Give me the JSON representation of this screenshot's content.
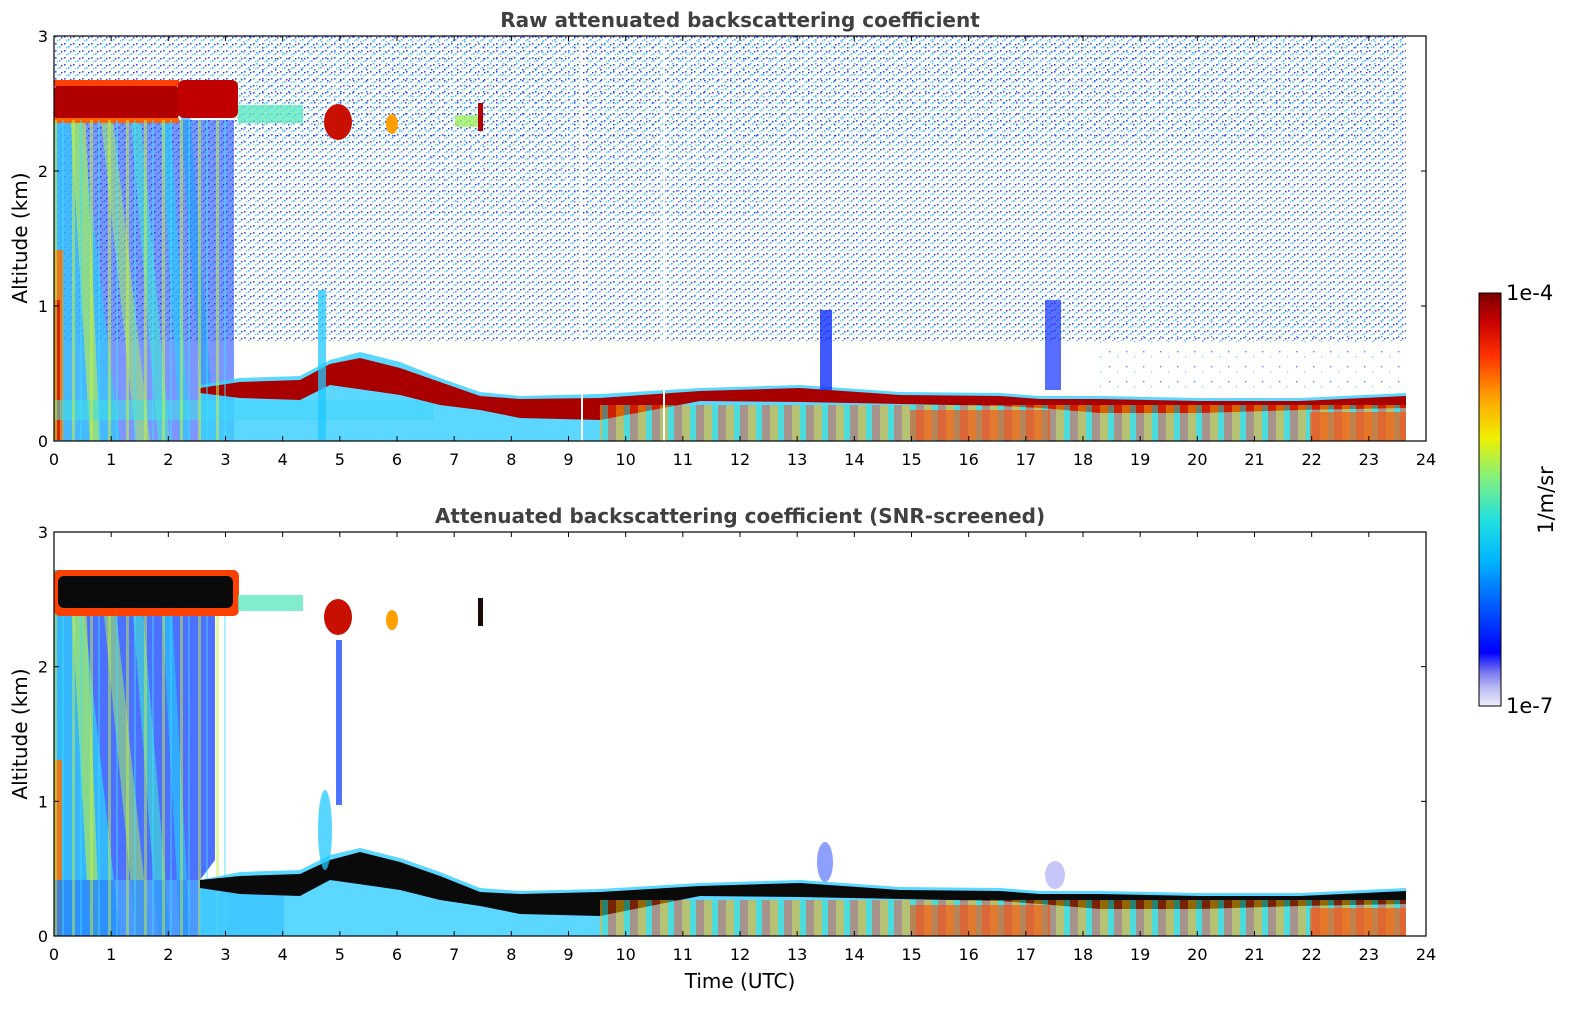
{
  "chart_data": [
    {
      "type": "heatmap",
      "title": "Raw attenuated backscattering coefficient",
      "xlabel": "",
      "ylabel": "Altitude (km)",
      "xlim": [
        0,
        24
      ],
      "ylim": [
        0,
        3
      ],
      "xticks": [
        "0",
        "1",
        "2",
        "3",
        "4",
        "5",
        "6",
        "7",
        "8",
        "9",
        "10",
        "11",
        "12",
        "13",
        "14",
        "15",
        "16",
        "17",
        "18",
        "19",
        "20",
        "21",
        "22",
        "23",
        "24"
      ],
      "yticks": [
        "0",
        "1",
        "2",
        "3"
      ],
      "data_end_time": 23.65,
      "boundary_layer_top_km": [
        {
          "t": 3.0,
          "z": 0.42
        },
        {
          "t": 5.0,
          "z": 0.68
        },
        {
          "t": 6.0,
          "z": 0.55
        },
        {
          "t": 7.0,
          "z": 0.45
        },
        {
          "t": 7.5,
          "z": 0.33
        },
        {
          "t": 8.0,
          "z": 0.32
        },
        {
          "t": 9.0,
          "z": 0.3
        },
        {
          "t": 10.0,
          "z": 0.36
        },
        {
          "t": 11.0,
          "z": 0.36
        },
        {
          "t": 12.0,
          "z": 0.4
        },
        {
          "t": 13.0,
          "z": 0.4
        },
        {
          "t": 14.0,
          "z": 0.38
        },
        {
          "t": 15.0,
          "z": 0.35
        },
        {
          "t": 16.0,
          "z": 0.36
        },
        {
          "t": 17.0,
          "z": 0.36
        },
        {
          "t": 18.0,
          "z": 0.33
        },
        {
          "t": 19.0,
          "z": 0.32
        },
        {
          "t": 20.0,
          "z": 0.3
        },
        {
          "t": 21.0,
          "z": 0.31
        },
        {
          "t": 22.0,
          "z": 0.32
        },
        {
          "t": 23.0,
          "z": 0.35
        },
        {
          "t": 23.65,
          "z": 0.35
        }
      ],
      "cloud_layers_km": [
        {
          "t_start": 0.1,
          "t_end": 3.2,
          "z_base": 2.3,
          "z_top": 2.7
        },
        {
          "t_start": 4.7,
          "t_end": 5.2,
          "z_base": 2.25,
          "z_top": 2.5
        },
        {
          "t_start": 5.8,
          "t_end": 6.1,
          "z_base": 2.25,
          "z_top": 2.45
        },
        {
          "t_start": 7.35,
          "t_end": 7.5,
          "z_base": 2.25,
          "z_top": 2.55
        }
      ]
    },
    {
      "type": "heatmap",
      "title": "Attenuated backscattering coefficient (SNR-screened)",
      "xlabel": "Time (UTC)",
      "ylabel": "Altitude (km)",
      "xlim": [
        0,
        24
      ],
      "ylim": [
        0,
        3
      ],
      "xticks": [
        "0",
        "1",
        "2",
        "3",
        "4",
        "5",
        "6",
        "7",
        "8",
        "9",
        "10",
        "11",
        "12",
        "13",
        "14",
        "15",
        "16",
        "17",
        "18",
        "19",
        "20",
        "21",
        "22",
        "23",
        "24"
      ],
      "yticks": [
        "0",
        "1",
        "2",
        "3"
      ],
      "data_end_time": 23.65
    }
  ],
  "colorbar": {
    "label": "1/m/sr",
    "max_label": "1e-4",
    "min_label": "1e-7",
    "scale": "log",
    "colors": [
      "#e8e8f8",
      "#b8b8f0",
      "#7878f0",
      "#0000ff",
      "#0070ff",
      "#00c8ff",
      "#40e8c0",
      "#a0f060",
      "#f0f000",
      "#ffa000",
      "#ff3000",
      "#c00000",
      "#7a0000"
    ]
  }
}
